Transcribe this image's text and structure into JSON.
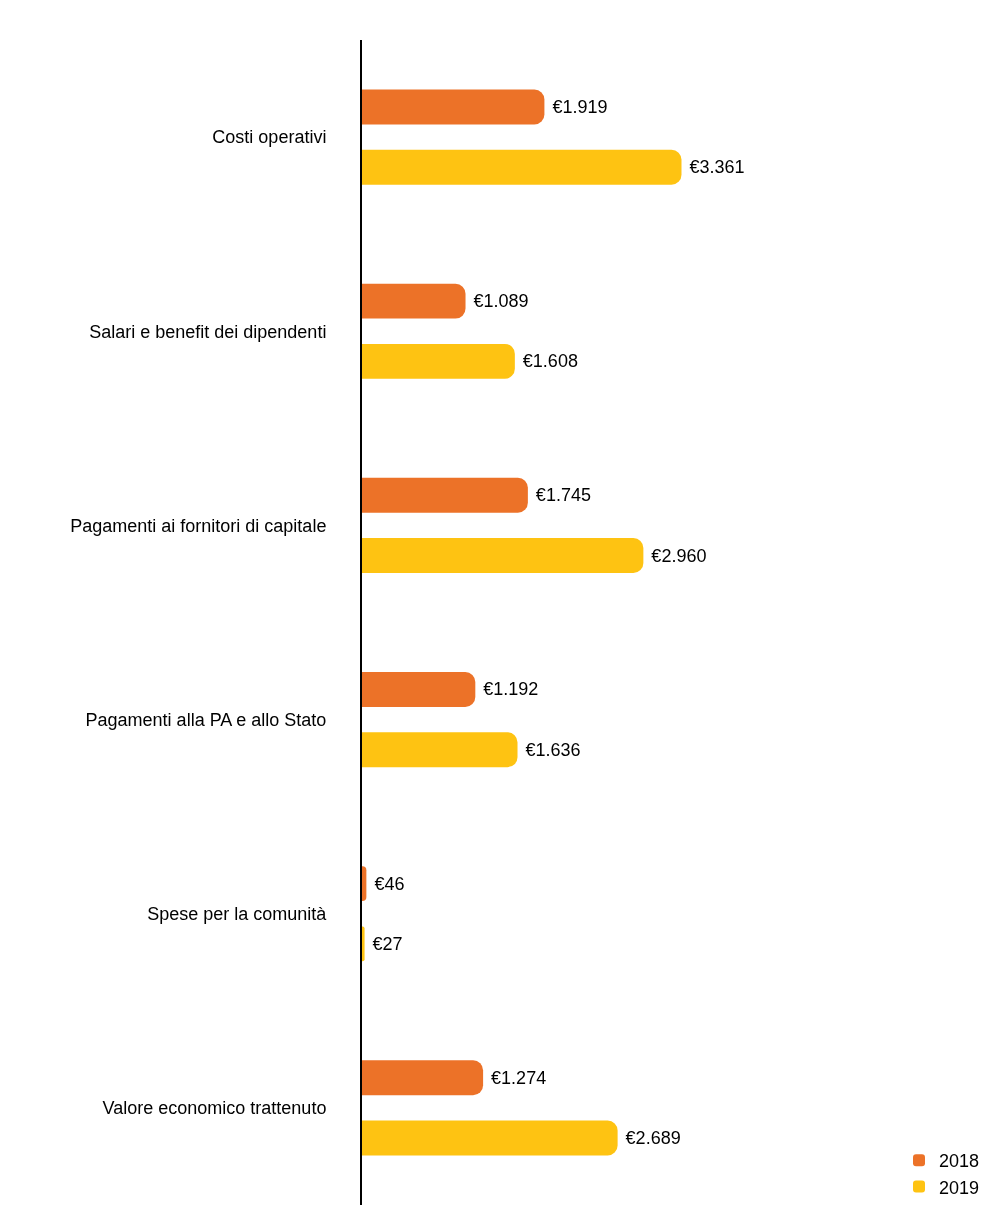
{
  "chart_data": {
    "type": "bar",
    "orientation": "horizontal",
    "categories": [
      "Costi operativi",
      "Salari e benefit dei dipendenti",
      "Pagamenti ai fornitori di capitale",
      "Pagamenti alla PA e allo Stato",
      "Spese per la comunità",
      "Valore economico trattenuto"
    ],
    "series": [
      {
        "name": "2018",
        "color": "#ec7228",
        "values": [
          1919,
          1089,
          1745,
          1192,
          46,
          1274
        ],
        "value_labels": [
          "€1.919",
          "€1.089",
          "€1.745",
          "€1.192",
          "€46",
          "€1.274"
        ]
      },
      {
        "name": "2019",
        "color": "#fec312",
        "values": [
          3361,
          1608,
          2960,
          1636,
          27,
          2689
        ],
        "value_labels": [
          "€3.361",
          "€1.608",
          "€2.960",
          "€1.636",
          "€27",
          "€2.689"
        ]
      }
    ],
    "legend": "bottom right"
  }
}
